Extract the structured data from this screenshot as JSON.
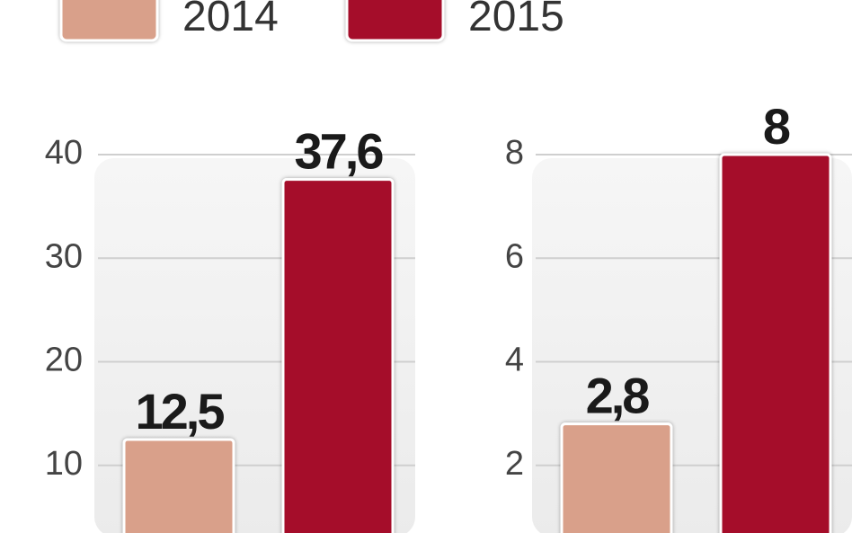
{
  "legend": [
    {
      "name": "2014",
      "color": "#d9a08a"
    },
    {
      "name": "2015",
      "color": "#a50d2a"
    }
  ],
  "chart_data": [
    {
      "type": "bar",
      "values": [
        12.5,
        37.6
      ],
      "value_labels": [
        "12,5",
        "37,6"
      ],
      "ylim": [
        0,
        40
      ],
      "yticks": [
        10,
        20,
        30,
        40
      ],
      "grid": true
    },
    {
      "type": "bar",
      "values": [
        2.8,
        8
      ],
      "value_labels": [
        "2,8",
        "8"
      ],
      "ylim": [
        0,
        8
      ],
      "yticks": [
        2,
        4,
        6,
        8
      ],
      "grid": true
    }
  ]
}
